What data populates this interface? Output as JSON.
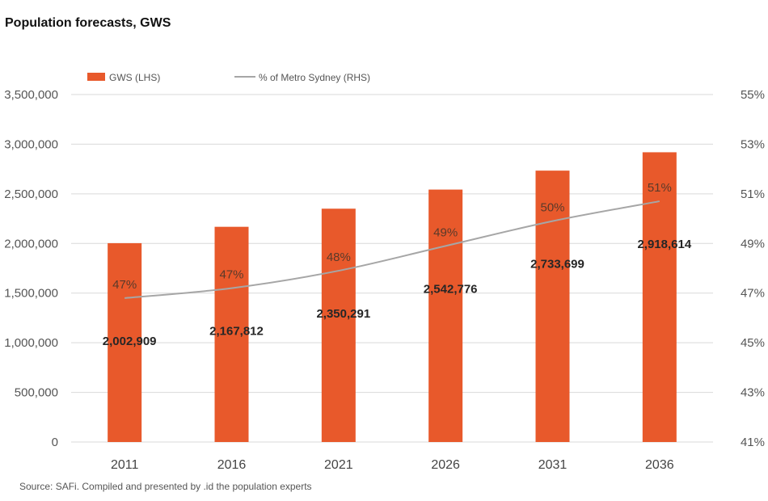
{
  "title": "Population forecasts, GWS",
  "source": "Source: SAFi. Compiled and presented by .id the population experts",
  "colors": {
    "bar": "#E8592B",
    "line": "#A6A6A6",
    "grid": "#D9D9D9"
  },
  "chart_data": {
    "type": "bar",
    "title": "Population forecasts, GWS",
    "categories": [
      "2011",
      "2016",
      "2021",
      "2026",
      "2031",
      "2036"
    ],
    "series": [
      {
        "name": "GWS (LHS)",
        "type": "bar",
        "axis": "left",
        "values": [
          2002909,
          2167812,
          2350291,
          2542776,
          2733699,
          2918614
        ],
        "labels": [
          "2,002,909",
          "2,167,812",
          "2,350,291",
          "2,542,776",
          "2,733,699",
          "2,918,614"
        ]
      },
      {
        "name": "% of Metro Sydney (RHS)",
        "type": "line",
        "axis": "right",
        "values": [
          46.8,
          47.2,
          47.9,
          48.9,
          49.9,
          50.7
        ],
        "labels": [
          "47%",
          "47%",
          "48%",
          "49%",
          "50%",
          "51%"
        ]
      }
    ],
    "y_left": {
      "ylim": [
        0,
        3500000
      ],
      "ticks": [
        0,
        500000,
        1000000,
        1500000,
        2000000,
        2500000,
        3000000,
        3500000
      ],
      "tick_labels": [
        "0",
        "500,000",
        "1,000,000",
        "1,500,000",
        "2,000,000",
        "2,500,000",
        "3,000,000",
        "3,500,000"
      ]
    },
    "y_right": {
      "ylim": [
        41,
        55
      ],
      "ticks": [
        41,
        43,
        45,
        47,
        49,
        51,
        53,
        55
      ],
      "tick_labels": [
        "41%",
        "43%",
        "45%",
        "47%",
        "49%",
        "51%",
        "53%",
        "55%"
      ]
    },
    "grid": true,
    "legend": "top-left"
  }
}
